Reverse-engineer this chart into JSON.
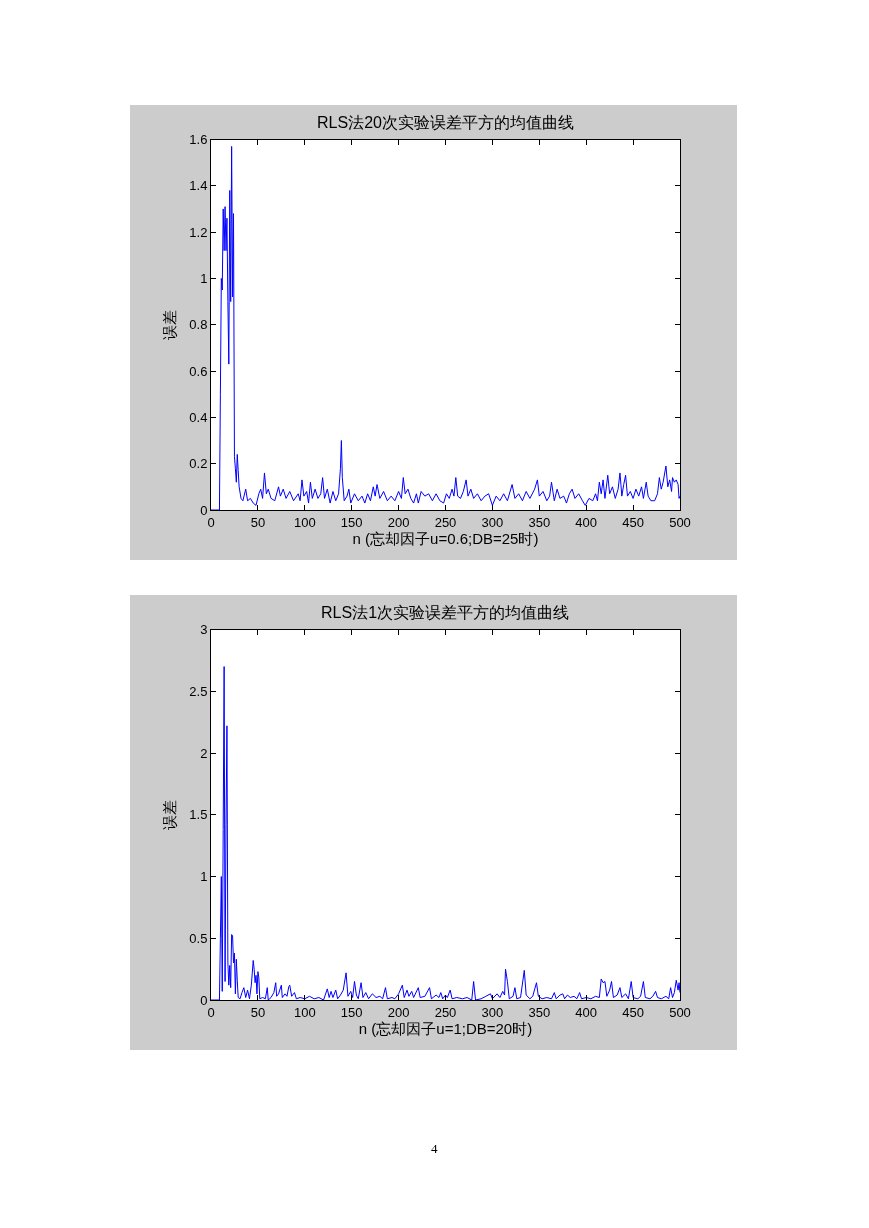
{
  "chart_data": [
    {
      "type": "line",
      "title": "RLS法20次实验误差平方的均值曲线",
      "xlabel": "n (忘却因子u=0.6;DB=25时)",
      "ylabel": "误差",
      "series": [
        {
          "color": "#0000ff",
          "x": [
            0,
            9,
            10,
            11,
            12,
            13,
            14,
            15,
            16,
            17,
            18,
            19,
            20,
            21,
            22,
            23,
            24,
            25,
            26,
            27,
            28,
            29,
            30,
            32,
            34,
            37,
            39,
            42,
            45,
            48,
            51,
            53,
            55,
            57,
            59,
            61,
            64,
            68,
            72,
            74,
            77,
            80,
            84,
            88,
            93,
            95,
            97,
            99,
            102,
            104,
            106,
            108,
            111,
            114,
            117,
            119,
            121,
            124,
            127,
            130,
            133,
            136,
            138,
            139,
            140,
            142,
            145,
            147,
            149,
            153,
            157,
            161,
            164,
            167,
            170,
            173,
            175,
            177,
            180,
            184,
            188,
            192,
            196,
            200,
            203,
            205,
            207,
            210,
            213,
            216,
            219,
            221,
            224,
            228,
            232,
            236,
            240,
            244,
            248,
            251,
            254,
            257,
            259,
            261,
            263,
            266,
            269,
            272,
            274,
            277,
            280,
            284,
            288,
            292,
            296,
            300,
            304,
            308,
            312,
            316,
            321,
            324,
            328,
            332,
            336,
            340,
            345,
            348,
            350,
            354,
            358,
            361,
            363,
            366,
            369,
            372,
            376,
            379,
            382,
            385,
            388,
            392,
            396,
            399,
            403,
            407,
            410,
            412,
            414,
            416,
            418,
            420,
            423,
            425,
            428,
            431,
            434,
            436,
            438,
            440,
            442,
            444,
            447,
            450,
            453,
            456,
            459,
            461,
            464,
            466,
            469,
            473,
            476,
            478,
            480,
            482,
            485,
            487,
            489,
            491,
            492,
            494,
            496,
            498,
            499,
            500
          ],
          "values": [
            0,
            0,
            0.5,
            1.0,
            0.95,
            1.3,
            1.12,
            1.31,
            1.12,
            1.26,
            0.9,
            0.63,
            1.38,
            0.9,
            1.57,
            0.92,
            1.28,
            0.23,
            0.18,
            0.12,
            0.24,
            0.17,
            0.1,
            0.05,
            0.04,
            0.09,
            0.04,
            0.05,
            0.03,
            0.02,
            0.07,
            0.09,
            0.05,
            0.16,
            0.07,
            0.09,
            0.05,
            0.04,
            0.1,
            0.06,
            0.09,
            0.05,
            0.08,
            0.04,
            0.07,
            0.04,
            0.13,
            0.06,
            0.08,
            0.03,
            0.12,
            0.05,
            0.09,
            0.05,
            0.07,
            0.14,
            0.05,
            0.09,
            0.03,
            0.08,
            0.04,
            0.07,
            0.18,
            0.3,
            0.14,
            0.04,
            0.06,
            0.09,
            0.03,
            0.07,
            0.04,
            0.06,
            0.03,
            0.07,
            0.04,
            0.1,
            0.06,
            0.11,
            0.05,
            0.08,
            0.04,
            0.06,
            0.04,
            0.08,
            0.05,
            0.14,
            0.07,
            0.09,
            0.05,
            0.03,
            0.07,
            0.03,
            0.08,
            0.06,
            0.07,
            0.04,
            0.07,
            0.04,
            0.03,
            0.07,
            0.05,
            0.09,
            0.06,
            0.14,
            0.06,
            0.05,
            0.08,
            0.13,
            0.06,
            0.09,
            0.05,
            0.07,
            0.04,
            0.06,
            0.07,
            0.02,
            0.06,
            0.04,
            0.07,
            0.04,
            0.11,
            0.05,
            0.07,
            0.04,
            0.08,
            0.05,
            0.09,
            0.13,
            0.06,
            0.08,
            0.04,
            0.06,
            0.12,
            0.04,
            0.09,
            0.05,
            0.06,
            0.03,
            0.07,
            0.09,
            0.05,
            0.07,
            0.04,
            0.02,
            0.05,
            0.04,
            0.07,
            0.04,
            0.12,
            0.07,
            0.13,
            0.05,
            0.15,
            0.07,
            0.1,
            0.05,
            0.09,
            0.16,
            0.06,
            0.11,
            0.15,
            0.06,
            0.08,
            0.05,
            0.09,
            0.06,
            0.1,
            0.05,
            0.12,
            0.06,
            0.04,
            0.04,
            0.07,
            0.14,
            0.09,
            0.12,
            0.19,
            0.1,
            0.13,
            0.08,
            0.14,
            0.12,
            0.13,
            0.11,
            0.05,
            0.06
          ]
        }
      ],
      "xlim": [
        0,
        500
      ],
      "xticks": [
        0,
        50,
        100,
        150,
        200,
        250,
        300,
        350,
        400,
        450,
        500
      ],
      "ylim": [
        0,
        1.6
      ],
      "yticks": [
        0,
        0.2,
        0.4,
        0.6,
        0.8,
        1,
        1.2,
        1.4,
        1.6
      ]
    },
    {
      "type": "line",
      "title": "RLS法1次实验误差平方的均值曲线",
      "xlabel": "n (忘却因子u=1;DB=20时)",
      "ylabel": "误差",
      "series": [
        {
          "color": "#0000ff",
          "x": [
            0,
            9,
            10,
            11,
            12,
            13,
            14,
            15,
            16,
            17,
            18,
            19,
            20,
            21,
            22,
            23,
            24,
            25,
            26,
            27,
            28,
            29,
            31,
            33,
            35,
            37,
            39,
            41,
            43,
            45,
            46,
            47,
            48,
            49,
            50,
            51,
            52,
            55,
            58,
            60,
            61,
            64,
            67,
            69,
            70,
            72,
            75,
            76,
            79,
            81,
            83,
            84,
            86,
            89,
            91,
            95,
            100,
            105,
            110,
            115,
            120,
            124,
            126,
            128,
            130,
            133,
            135,
            138,
            141,
            144,
            146,
            149,
            151,
            153,
            155,
            157,
            160,
            162,
            165,
            168,
            172,
            176,
            180,
            183,
            186,
            188,
            193,
            196,
            200,
            204,
            206,
            209,
            211,
            214,
            216,
            221,
            223,
            228,
            233,
            235,
            240,
            243,
            245,
            247,
            250,
            252,
            255,
            257,
            262,
            268,
            273,
            278,
            280,
            282,
            288,
            293,
            298,
            300,
            305,
            308,
            311,
            313,
            314,
            316,
            318,
            322,
            324,
            326,
            330,
            334,
            336,
            340,
            343,
            347,
            349,
            353,
            358,
            363,
            366,
            368,
            372,
            375,
            377,
            380,
            383,
            387,
            390,
            393,
            395,
            400,
            405,
            410,
            414,
            416,
            418,
            420,
            422,
            425,
            427,
            429,
            433,
            436,
            438,
            442,
            445,
            448,
            450,
            455,
            458,
            461,
            463,
            468,
            471,
            474,
            476,
            480,
            485,
            488,
            490,
            492,
            494,
            496,
            498,
            499,
            500
          ],
          "values": [
            0,
            0,
            0.5,
            1.0,
            0.07,
            1.38,
            2.7,
            0.15,
            1.42,
            2.22,
            0.3,
            0.12,
            0.28,
            0.1,
            0.53,
            0.52,
            0.3,
            0.38,
            0.05,
            0.33,
            0.16,
            0.02,
            0.01,
            0.06,
            0.1,
            0.02,
            0.08,
            0.01,
            0.12,
            0.32,
            0.25,
            0.14,
            0.2,
            0.05,
            0.23,
            0.18,
            0.01,
            0.02,
            0.01,
            0.1,
            0,
            0.02,
            0.06,
            0.14,
            0.03,
            0.05,
            0.12,
            0.02,
            0.05,
            0.03,
            0.11,
            0.12,
            0.03,
            0.06,
            0.01,
            0.02,
            0.01,
            0.03,
            0.01,
            0.02,
            0,
            0.09,
            0.02,
            0.07,
            0.02,
            0.08,
            0.01,
            0.04,
            0.08,
            0.22,
            0.03,
            0.07,
            0.02,
            0.15,
            0.04,
            0.01,
            0.14,
            0.02,
            0.06,
            0.01,
            0.05,
            0.02,
            0.03,
            0.01,
            0.1,
            0.01,
            0.02,
            0.01,
            0.05,
            0.12,
            0.02,
            0.08,
            0.03,
            0.07,
            0.02,
            0.1,
            0.02,
            0.03,
            0.1,
            0.01,
            0.04,
            0.02,
            0.06,
            0.01,
            0.04,
            0.02,
            0.08,
            0.01,
            0.02,
            0.01,
            0.02,
            0,
            0.15,
            0,
            0.01,
            0.03,
            0.05,
            0.01,
            0.05,
            0.02,
            0.07,
            0.04,
            0.25,
            0.15,
            0.01,
            0.03,
            0.1,
            0.01,
            0.02,
            0.24,
            0.04,
            0.01,
            0.03,
            0.14,
            0.03,
            0.01,
            0.02,
            0.01,
            0.06,
            0.01,
            0.04,
            0.05,
            0.01,
            0.04,
            0.02,
            0.03,
            0.01,
            0.06,
            0.01,
            0.02,
            0.01,
            0.03,
            0.02,
            0.17,
            0.14,
            0.15,
            0.03,
            0.08,
            0.15,
            0.02,
            0.04,
            0.1,
            0.02,
            0.05,
            0.01,
            0.15,
            0.02,
            0.01,
            0.03,
            0.15,
            0.02,
            0.01,
            0.03,
            0.07,
            0.02,
            0.01,
            0.03,
            0.01,
            0.1,
            0.02,
            0.06,
            0.16,
            0.08,
            0.14,
            0.06
          ]
        }
      ],
      "xlim": [
        0,
        500
      ],
      "xticks": [
        0,
        50,
        100,
        150,
        200,
        250,
        300,
        350,
        400,
        450,
        500
      ],
      "ylim": [
        0,
        3
      ],
      "yticks": [
        0,
        0.5,
        1,
        1.5,
        2,
        2.5,
        3
      ],
      "annotations": [
        "4"
      ]
    }
  ]
}
